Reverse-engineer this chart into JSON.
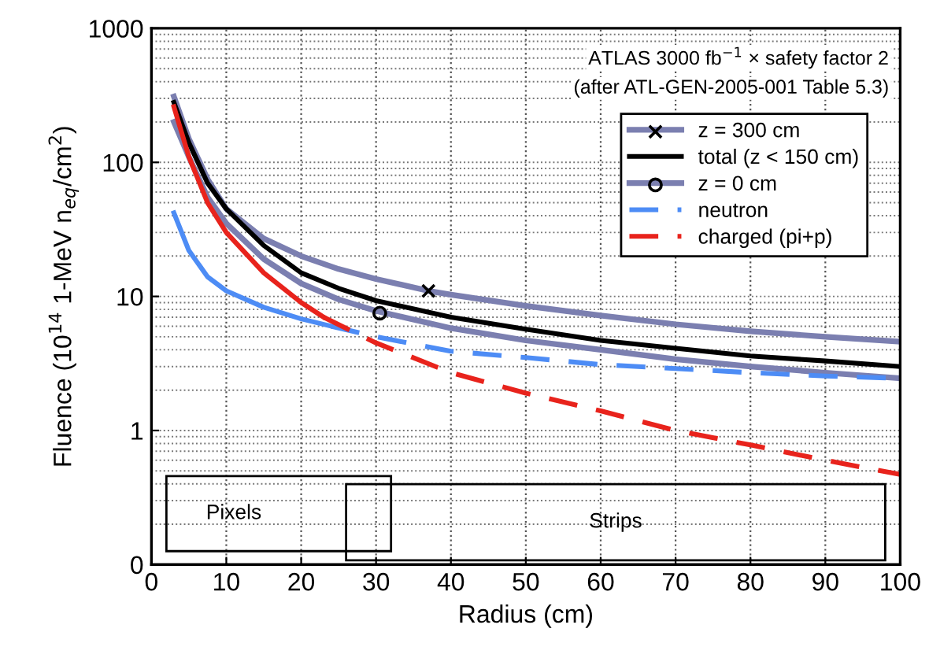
{
  "chart_data": {
    "type": "line",
    "xlabel": "Radius (cm)",
    "ylabel": "Fluence (10$^{14}$ 1-MeV n$_{eq}$/cm$^{2}$)",
    "annotations": [
      "ATLAS 3000 fb$^{−1}$ × safety factor 2",
      "(after ATL-GEN-2005-001 Table 5.3)",
      "Pixels",
      "Strips"
    ],
    "log": "y",
    "grid": true,
    "legend": "top right",
    "xlim": [
      0,
      100
    ],
    "xticks": [
      0,
      10,
      20,
      30,
      40,
      50,
      60,
      70,
      80,
      90,
      100
    ],
    "ylim": [
      0.1,
      1000
    ],
    "yticks": [
      {
        "value": 0.1,
        "label": "0"
      },
      1,
      10,
      100,
      1000
    ],
    "series": [
      {
        "name": "z = 300 cm",
        "color": "#7b7fb0",
        "line_style": "solid",
        "x": [
          3,
          5,
          7.5,
          10,
          15,
          20,
          25,
          30,
          37,
          40,
          50,
          60,
          70,
          80,
          90,
          100
        ],
        "values": [
          310,
          150,
          75,
          45,
          27,
          20,
          16,
          13.5,
          11,
          10.3,
          8.5,
          7.2,
          6.2,
          5.5,
          5.0,
          4.6
        ]
      },
      {
        "type": "scatter",
        "color": "#000000",
        "marker": "cross",
        "x": [
          37
        ],
        "values": [
          11
        ]
      },
      {
        "name": "total (z < 150 cm)",
        "color": "#000000",
        "line_style": "solid",
        "x": [
          3,
          5,
          7.5,
          10,
          15,
          20,
          25,
          30,
          40,
          50,
          60,
          70,
          80,
          90,
          100
        ],
        "values": [
          280,
          140,
          70,
          45,
          24,
          15,
          11.5,
          9.3,
          7,
          5.7,
          4.7,
          4.1,
          3.6,
          3.3,
          3.0
        ]
      },
      {
        "name": "z = 0 cm",
        "color": "#7b7fb0",
        "line_style": "solid",
        "x": [
          3,
          5,
          7.5,
          10,
          15,
          20,
          25,
          30,
          40,
          50,
          60,
          70,
          80,
          90,
          100
        ],
        "values": [
          200,
          110,
          55,
          35,
          19,
          12.5,
          9.5,
          7.8,
          5.8,
          4.7,
          4.0,
          3.4,
          3.0,
          2.7,
          2.45
        ]
      },
      {
        "type": "scatter",
        "color": "#000000",
        "marker": "circle",
        "x": [
          30.5
        ],
        "values": [
          7.5
        ]
      },
      {
        "color": "#4d8cf5",
        "line_style": "solid",
        "x": [
          3,
          5,
          7.5,
          10,
          15,
          20,
          24
        ],
        "values": [
          42,
          22,
          14,
          11,
          8.3,
          6.8,
          6.0
        ]
      },
      {
        "name": "neutron",
        "color": "#4d8cf5",
        "line_style": "dashed",
        "x": [
          24,
          30,
          40,
          50,
          60,
          70,
          80,
          90,
          100
        ],
        "values": [
          6.0,
          5.0,
          3.9,
          3.5,
          3.1,
          2.9,
          2.7,
          2.55,
          2.45
        ]
      },
      {
        "color": "#e8231c",
        "line_style": "solid",
        "x": [
          3,
          5,
          7.5,
          10,
          15,
          20,
          23
        ],
        "values": [
          260,
          110,
          50,
          30,
          15,
          9,
          7
        ]
      },
      {
        "name": "charged (pi+p)",
        "color": "#e8231c",
        "line_style": "dashed",
        "x": [
          23,
          30,
          40,
          50,
          60,
          70,
          80,
          90,
          100
        ],
        "values": [
          7,
          4.5,
          2.7,
          1.9,
          1.4,
          1.0,
          0.78,
          0.6,
          0.47
        ]
      }
    ]
  }
}
